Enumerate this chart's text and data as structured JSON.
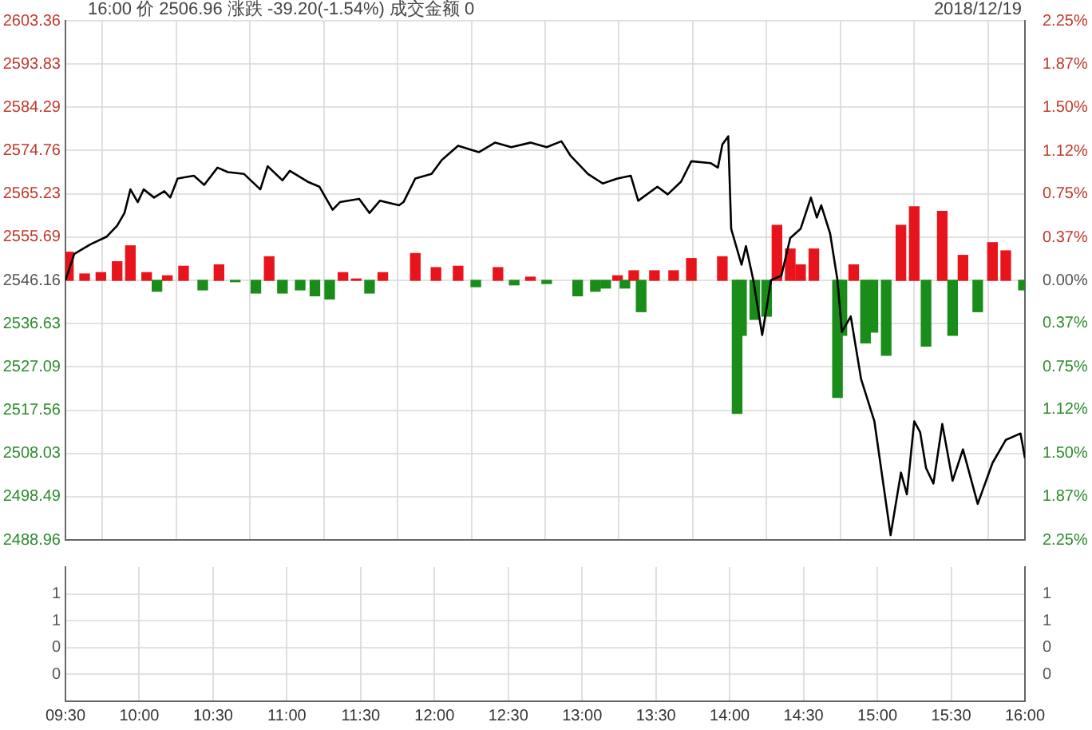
{
  "chart_data": [
    {
      "type": "line",
      "title": "16:00 价 2506.96 涨跌 -39.20(-1.54%) 成交金额 0",
      "subtitle": "2018/12/19",
      "xlim": [
        9.5,
        16
      ],
      "xticks": [
        {
          "value": 9.5,
          "label": null
        },
        {
          "value": 10,
          "label": null
        },
        {
          "value": 10.5,
          "label": null
        },
        {
          "value": 11,
          "label": null
        },
        {
          "value": 11.5,
          "label": null
        },
        {
          "value": 12,
          "label": null
        },
        {
          "value": 12.5,
          "label": null
        },
        {
          "value": 13,
          "label": null
        },
        {
          "value": 13.5,
          "label": null
        },
        {
          "value": 14,
          "label": null
        },
        {
          "value": 14.5,
          "label": null
        },
        {
          "value": 15,
          "label": null
        },
        {
          "value": 15.5,
          "label": null
        },
        {
          "value": 16,
          "label": null
        }
      ],
      "ylim": [
        2488.96,
        2603.36
      ],
      "yticks": [
        2488.96,
        2498.49,
        2508.03,
        2517.56,
        2527.09,
        2536.63,
        2546.16,
        2555.69,
        2565.23,
        2574.76,
        2584.29,
        2593.83,
        2603.36
      ],
      "y2lim": [
        -2.25,
        2.25
      ],
      "y2ticks": [
        {
          "value": -2.25,
          "label": "2.25%"
        },
        {
          "value": -1.87,
          "label": "1.87%"
        },
        {
          "value": -1.5,
          "label": "1.50%"
        },
        {
          "value": -1.12,
          "label": "1.12%"
        },
        {
          "value": -0.75,
          "label": "0.75%"
        },
        {
          "value": -0.37,
          "label": "0.37%"
        },
        {
          "value": 0,
          "label": "0.00%"
        },
        {
          "value": 0.37,
          "label": "0.37%"
        },
        {
          "value": 0.75,
          "label": "0.75%"
        },
        {
          "value": 1.12,
          "label": "1.12%"
        },
        {
          "value": 1.5,
          "label": "1.50%"
        },
        {
          "value": 1.87,
          "label": "1.87%"
        },
        {
          "value": 2.25,
          "label": "2.25%"
        }
      ],
      "tick_labels": "y",
      "grid": true,
      "legend": false,
      "marker": "none",
      "series": [
        {
          "type": "bar",
          "x": [
            9.52,
            9.63,
            9.74,
            9.85,
            9.94,
            10.05,
            10.12,
            10.19,
            10.3,
            10.43,
            10.54,
            10.65,
            10.79,
            10.88,
            10.97,
            11.09,
            11.19,
            11.29,
            11.38,
            11.47,
            11.56,
            11.65,
            11.87,
            12.01,
            12.16,
            12.28,
            12.43,
            12.54,
            12.65,
            12.76,
            12.97,
            13.09,
            13.16,
            13.24,
            13.29,
            13.35,
            13.4,
            13.49,
            13.62,
            13.74,
            13.95,
            14.05,
            14.08,
            14.17,
            14.25,
            14.32,
            14.41,
            14.48,
            14.57,
            14.73,
            14.76,
            14.84,
            14.92,
            14.97,
            15.06,
            15.16,
            15.25,
            15.33,
            15.44,
            15.51,
            15.58,
            15.68,
            15.78,
            15.87,
            15.99
          ],
          "values": [
            6.2,
            1.4,
            1.7,
            4.1,
            7.6,
            1.7,
            -2.4,
            1.0,
            3.1,
            -2.1,
            3.4,
            -0.3,
            -2.8,
            5.2,
            -2.8,
            -2.1,
            -3.4,
            -4.1,
            1.7,
            0.3,
            -2.8,
            1.7,
            5.9,
            2.8,
            3.1,
            -1.4,
            2.8,
            -1.0,
            0.7,
            -0.7,
            -3.4,
            -2.4,
            -1.7,
            1.0,
            -1.7,
            2.1,
            -6.9,
            2.1,
            2.1,
            4.8,
            5.2,
            -29.3,
            -12.1,
            -8.6,
            -7.9,
            12.1,
            6.9,
            3.4,
            6.9,
            -25.8,
            -12.1,
            3.4,
            -13.8,
            -11.4,
            -16.5,
            12.1,
            16.2,
            -14.5,
            15.2,
            -12.1,
            5.5,
            -6.9,
            8.3,
            6.5,
            -2.1
          ],
          "base": [
            2546.16,
            2546.16,
            2546.16,
            2546.16,
            2546.16,
            2546.16,
            2546.16,
            2546.16,
            2546.16,
            2546.16,
            2546.16,
            2546.16,
            2546.16,
            2546.16,
            2546.16,
            2546.16,
            2546.16,
            2546.16,
            2546.16,
            2546.16,
            2546.16,
            2546.16,
            2546.16,
            2546.16,
            2546.16,
            2546.16,
            2546.16,
            2546.16,
            2546.16,
            2546.16,
            2546.16,
            2546.16,
            2546.16,
            2546.16,
            2546.16,
            2546.16,
            2546.16,
            2546.16,
            2546.16,
            2546.16,
            2546.16,
            2546.16,
            2546.16,
            2546.16,
            2546.16,
            2546.16,
            2546.16,
            2546.16,
            2546.16,
            2546.16,
            2546.16,
            2546.16,
            2546.16,
            2546.16,
            2546.16,
            2546.16,
            2546.16,
            2546.16,
            2546.16,
            2546.16,
            2546.16,
            2546.16,
            2546.16,
            2546.16,
            2546.16
          ],
          "colors": [
            "#e8141b",
            "#e8141b",
            "#e8141b",
            "#e8141b",
            "#e8141b",
            "#e8141b",
            "#1a8c1a",
            "#e8141b",
            "#e8141b",
            "#1a8c1a",
            "#e8141b",
            "#1a8c1a",
            "#1a8c1a",
            "#e8141b",
            "#1a8c1a",
            "#1a8c1a",
            "#1a8c1a",
            "#1a8c1a",
            "#e8141b",
            "#e8141b",
            "#1a8c1a",
            "#e8141b",
            "#e8141b",
            "#e8141b",
            "#e8141b",
            "#1a8c1a",
            "#e8141b",
            "#1a8c1a",
            "#e8141b",
            "#1a8c1a",
            "#1a8c1a",
            "#1a8c1a",
            "#1a8c1a",
            "#e8141b",
            "#1a8c1a",
            "#e8141b",
            "#1a8c1a",
            "#e8141b",
            "#e8141b",
            "#e8141b",
            "#e8141b",
            "#1a8c1a",
            "#1a8c1a",
            "#1a8c1a",
            "#1a8c1a",
            "#e8141b",
            "#e8141b",
            "#e8141b",
            "#e8141b",
            "#1a8c1a",
            "#1a8c1a",
            "#e8141b",
            "#1a8c1a",
            "#1a8c1a",
            "#1a8c1a",
            "#e8141b",
            "#e8141b",
            "#1a8c1a",
            "#e8141b",
            "#1a8c1a",
            "#e8141b",
            "#1a8c1a",
            "#e8141b",
            "#e8141b",
            "#1a8c1a"
          ]
        },
        {
          "color": "#000000",
          "x": [
            9.5,
            9.56,
            9.67,
            9.78,
            9.85,
            9.9,
            9.94,
            9.99,
            10.03,
            10.1,
            10.17,
            10.21,
            10.26,
            10.37,
            10.44,
            10.53,
            10.6,
            10.71,
            10.82,
            10.87,
            10.97,
            11.02,
            11.14,
            11.22,
            11.31,
            11.36,
            11.49,
            11.56,
            11.63,
            11.76,
            11.79,
            11.87,
            11.98,
            12.05,
            12.16,
            12.3,
            12.41,
            12.52,
            12.65,
            12.76,
            12.86,
            12.92,
            13.04,
            13.14,
            13.24,
            13.33,
            13.38,
            13.51,
            13.58,
            13.67,
            13.74,
            13.87,
            13.92,
            13.95,
            13.99,
            14.01,
            14.08,
            14.11,
            14.16,
            14.22,
            14.28,
            14.35,
            14.41,
            14.48,
            14.55,
            14.59,
            14.62,
            14.68,
            14.73,
            14.76,
            14.82,
            14.89,
            14.98,
            15.09,
            15.16,
            15.2,
            15.25,
            15.29,
            15.33,
            15.38,
            15.44,
            15.51,
            15.58,
            15.68,
            15.78,
            15.87,
            15.97,
            16
          ],
          "values": [
            2546.2,
            2552.0,
            2554.1,
            2555.8,
            2558.2,
            2561.0,
            2566.2,
            2563.4,
            2566.2,
            2564.4,
            2565.8,
            2564.4,
            2568.6,
            2569.2,
            2567.2,
            2571.0,
            2570.0,
            2569.6,
            2566.2,
            2571.3,
            2568.2,
            2570.3,
            2567.9,
            2566.8,
            2561.7,
            2563.4,
            2564.1,
            2561.0,
            2563.7,
            2562.7,
            2563.4,
            2568.6,
            2569.6,
            2572.7,
            2575.8,
            2574.4,
            2576.5,
            2575.5,
            2576.5,
            2575.5,
            2576.8,
            2573.7,
            2569.6,
            2567.5,
            2568.6,
            2569.2,
            2563.7,
            2566.8,
            2565.1,
            2567.9,
            2572.4,
            2572.0,
            2571.0,
            2576.1,
            2577.9,
            2557.5,
            2549.6,
            2553.7,
            2546.2,
            2534.1,
            2546.2,
            2547.2,
            2555.5,
            2557.5,
            2564.4,
            2560.0,
            2562.7,
            2556.5,
            2546.2,
            2534.8,
            2538.2,
            2524.4,
            2515.1,
            2490.0,
            2503.8,
            2499.0,
            2515.1,
            2512.7,
            2504.8,
            2501.4,
            2514.5,
            2502.0,
            2508.9,
            2496.9,
            2505.9,
            2511.0,
            2512.4,
            2507.0
          ]
        }
      ]
    },
    {
      "type": "bar",
      "xlim": [
        9.5,
        16
      ],
      "xticks": [
        {
          "value": 9.5,
          "label": "09:30"
        },
        {
          "value": 10,
          "label": "10:00"
        },
        {
          "value": 10.5,
          "label": "10:30"
        },
        {
          "value": 11,
          "label": "11:00"
        },
        {
          "value": 11.5,
          "label": "11:30"
        },
        {
          "value": 12,
          "label": "12:00"
        },
        {
          "value": 12.5,
          "label": "12:30"
        },
        {
          "value": 13,
          "label": "13:00"
        },
        {
          "value": 13.5,
          "label": "13:30"
        },
        {
          "value": 14,
          "label": "14:00"
        },
        {
          "value": 14.5,
          "label": "14:30"
        },
        {
          "value": 15,
          "label": "15:00"
        },
        {
          "value": 15.5,
          "label": "15:30"
        },
        {
          "value": 16,
          "label": "16:00"
        }
      ],
      "ylim": [
        0,
        1.25
      ],
      "yticks": [
        {
          "value": 0.25,
          "label": "0"
        },
        {
          "value": 0.5,
          "label": "0"
        },
        {
          "value": 0.75,
          "label": "1"
        },
        {
          "value": 1,
          "label": "1"
        }
      ],
      "y2lim": [
        0,
        1.25
      ],
      "y2ticks": [
        {
          "value": 0.25,
          "label": "0"
        },
        {
          "value": 0.5,
          "label": "0"
        },
        {
          "value": 0.75,
          "label": "1"
        },
        {
          "value": 1,
          "label": "1"
        }
      ],
      "grid": true,
      "legend": false
    }
  ]
}
